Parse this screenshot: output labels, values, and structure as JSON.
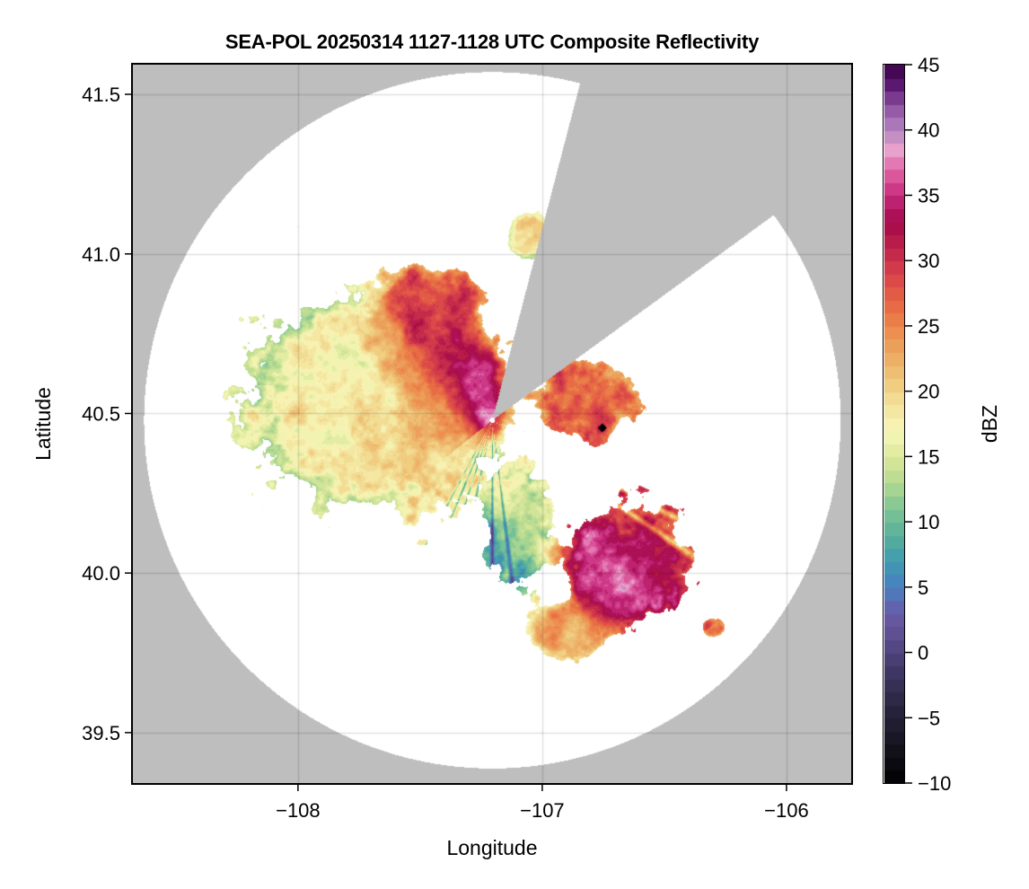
{
  "chart_data": {
    "type": "heatmap",
    "title": "SEA-POL 20250314 1127-1128 UTC Composite Reflectivity",
    "xlabel": "Longitude",
    "ylabel": "Latitude",
    "xlim": [
      -108.676,
      -105.735
    ],
    "ylim": [
      39.342,
      41.593
    ],
    "xticks": [
      -108,
      -107,
      -106
    ],
    "xtick_labels": [
      "−108",
      "−107",
      "−106"
    ],
    "yticks": [
      39.5,
      40.0,
      40.5,
      41.0,
      41.5
    ],
    "ytick_labels": [
      "39.5",
      "40.0",
      "40.5",
      "41.0",
      "41.5"
    ],
    "grid": true,
    "background_color": "#bebebe",
    "coverage_color": "#ffffff",
    "radar": {
      "lon": -107.206,
      "lat": 40.48,
      "range_lon_deg": 1.426,
      "range_lat_deg": 1.091,
      "blocked_sector_azimuth_deg": [
        14.6,
        53.9
      ]
    },
    "marker": {
      "lon": -106.754,
      "lat": 40.455,
      "shape": "diamond",
      "color": "#000000"
    },
    "colorbar": {
      "label": "dBZ",
      "vmin": -10,
      "vmax": 45,
      "step": 1,
      "ticks": [
        -10,
        -5,
        0,
        5,
        10,
        15,
        20,
        25,
        30,
        35,
        40,
        45
      ],
      "tick_labels": [
        "−10",
        "−5",
        "0",
        "5",
        "10",
        "15",
        "20",
        "25",
        "30",
        "35",
        "40",
        "45"
      ],
      "colormap_stops": [
        {
          "v": -10,
          "c": "#000000"
        },
        {
          "v": -7,
          "c": "#16141f"
        },
        {
          "v": -4,
          "c": "#2a2540"
        },
        {
          "v": -1,
          "c": "#433a6a"
        },
        {
          "v": 1,
          "c": "#5a4c8c"
        },
        {
          "v": 3,
          "c": "#6a5aa8"
        },
        {
          "v": 5,
          "c": "#4a7fc0"
        },
        {
          "v": 7,
          "c": "#3f9ab0"
        },
        {
          "v": 9,
          "c": "#59b09a"
        },
        {
          "v": 11,
          "c": "#7dc496"
        },
        {
          "v": 13,
          "c": "#b4d98f"
        },
        {
          "v": 15,
          "c": "#dbe89a"
        },
        {
          "v": 17,
          "c": "#f8f7b8"
        },
        {
          "v": 19,
          "c": "#f3e29a"
        },
        {
          "v": 21,
          "c": "#efc679"
        },
        {
          "v": 23,
          "c": "#eca760"
        },
        {
          "v": 25,
          "c": "#ec874a"
        },
        {
          "v": 27,
          "c": "#e56343"
        },
        {
          "v": 29,
          "c": "#d7424a"
        },
        {
          "v": 31,
          "c": "#be234a"
        },
        {
          "v": 33,
          "c": "#a3084a"
        },
        {
          "v": 35,
          "c": "#c62a7c"
        },
        {
          "v": 37,
          "c": "#e066a6"
        },
        {
          "v": 38.5,
          "c": "#e8a0cd"
        },
        {
          "v": 40,
          "c": "#b486c0"
        },
        {
          "v": 42,
          "c": "#8a4d9e"
        },
        {
          "v": 43.5,
          "c": "#5a1870"
        },
        {
          "v": 45,
          "c": "#3a0048"
        }
      ]
    },
    "echo_regions": [
      {
        "name": "west-stratiform",
        "lon": -107.78,
        "lat": 40.55,
        "rlon": 0.52,
        "rlat": 0.4,
        "dbz": 17
      },
      {
        "name": "west-inner-band",
        "lon": -107.45,
        "lat": 40.5,
        "rlon": 0.3,
        "rlat": 0.27,
        "dbz": 23
      },
      {
        "name": "nw-band",
        "lon": -107.45,
        "lat": 40.78,
        "rlon": 0.22,
        "rlat": 0.2,
        "dbz": 30
      },
      {
        "name": "nw-core",
        "lon": -107.29,
        "lat": 40.6,
        "rlon": 0.1,
        "rlat": 0.1,
        "dbz": 37
      },
      {
        "name": "center-core",
        "lon": -107.22,
        "lat": 40.49,
        "rlon": 0.07,
        "rlat": 0.05,
        "dbz": 36
      },
      {
        "name": "ne-cell",
        "lon": -106.8,
        "lat": 40.55,
        "rlon": 0.27,
        "rlat": 0.14,
        "dbz": 28
      },
      {
        "name": "se-band",
        "lon": -106.65,
        "lat": 40.03,
        "rlon": 0.28,
        "rlat": 0.22,
        "dbz": 30
      },
      {
        "name": "se-core",
        "lon": -106.72,
        "lat": 39.97,
        "rlon": 0.12,
        "rlat": 0.1,
        "dbz": 34
      },
      {
        "name": "south-lobe",
        "lon": -106.9,
        "lat": 39.82,
        "rlon": 0.2,
        "rlat": 0.1,
        "dbz": 22
      },
      {
        "name": "far-se-cells",
        "lon": -106.3,
        "lat": 39.83,
        "rlon": 0.06,
        "rlat": 0.04,
        "dbz": 28
      },
      {
        "name": "north-scatter",
        "lon": -107.05,
        "lat": 41.05,
        "rlon": 0.12,
        "rlat": 0.1,
        "dbz": 20
      },
      {
        "name": "ssw-spokes",
        "lon": -107.1,
        "lat": 40.15,
        "rlon": 0.15,
        "rlat": 0.2,
        "dbz": 10
      }
    ]
  }
}
